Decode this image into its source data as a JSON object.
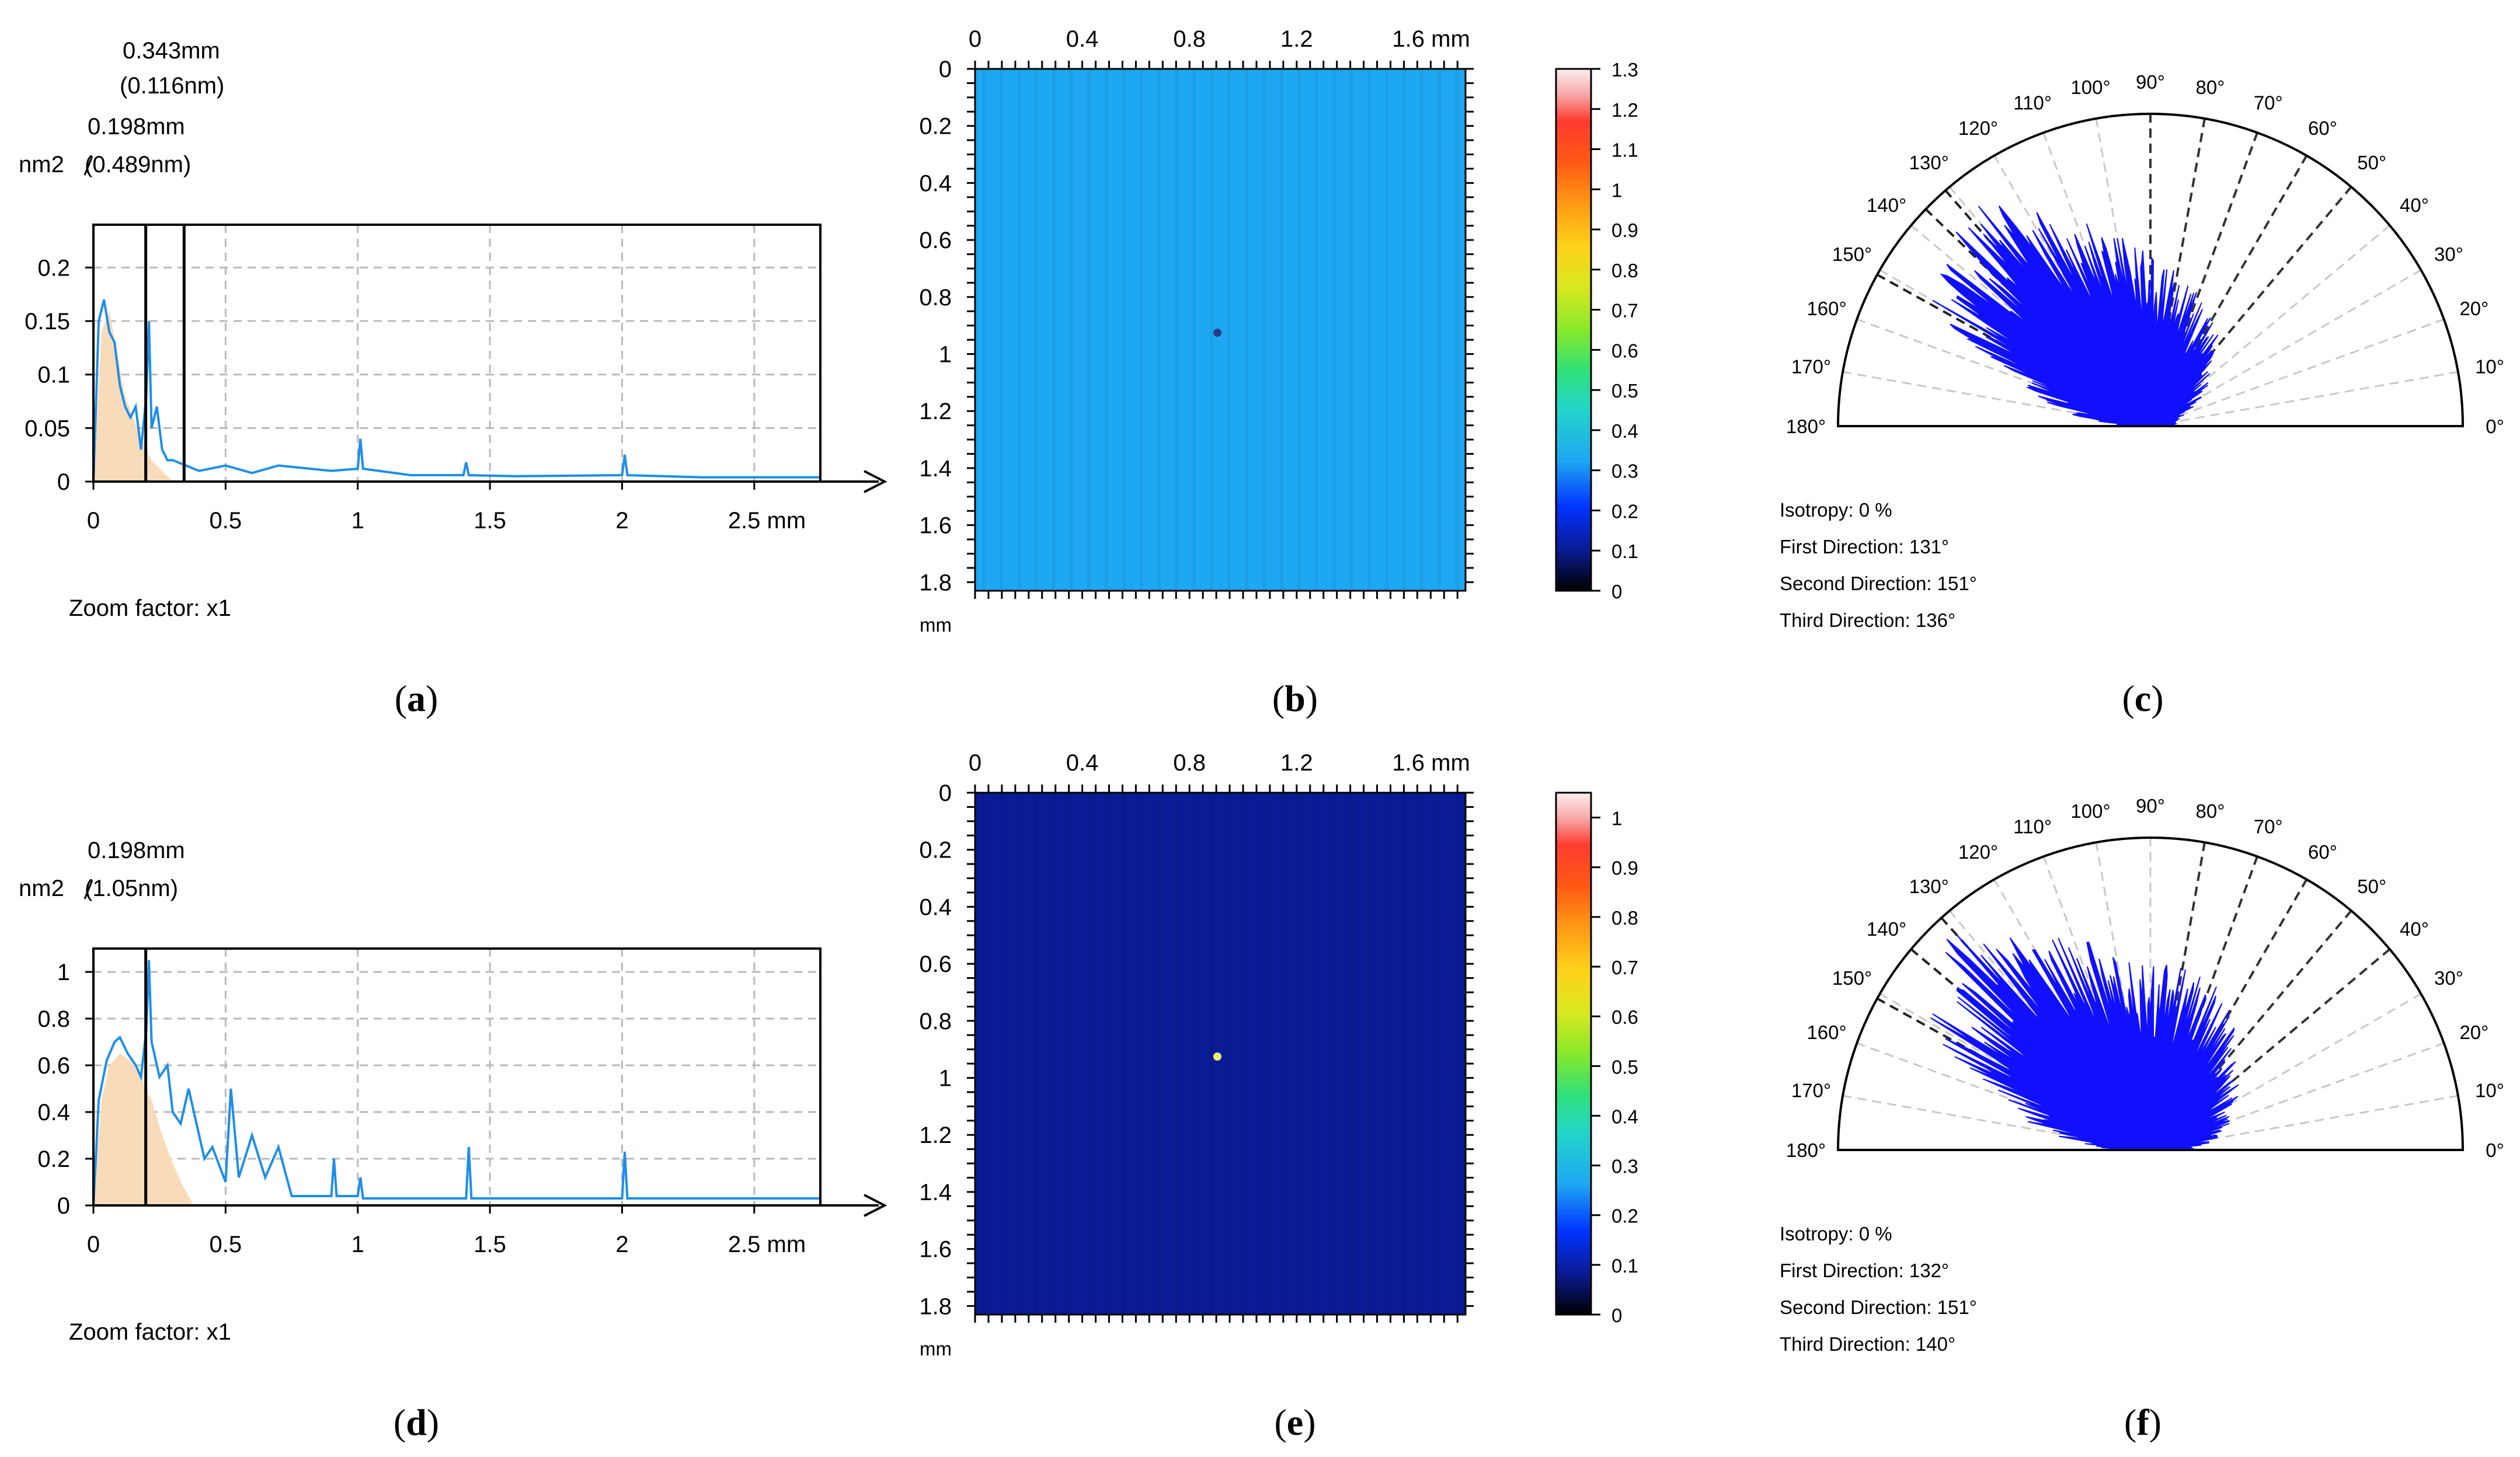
{
  "colors": {
    "spectrum_line": "#1e8ee8",
    "spectrum_fill": "#f8dcba",
    "grid": "#b9b9b9",
    "map_b": "#1ea8f2",
    "map_e": "#0a1b96",
    "rose_fill": "#1010ff"
  },
  "panels": {
    "a": {
      "caption_letter": "a"
    },
    "b": {
      "caption_letter": "b"
    },
    "c": {
      "caption_letter": "c"
    },
    "d": {
      "caption_letter": "d"
    },
    "e": {
      "caption_letter": "e"
    },
    "f": {
      "caption_letter": "f"
    }
  },
  "chart_data": [
    {
      "panel": "a",
      "type": "line",
      "title": "",
      "ylabel": "nm2",
      "xlabel": "mm",
      "xlim": [
        0,
        2.75
      ],
      "ylim": [
        0,
        0.24
      ],
      "xticks": [
        "0",
        "0.5",
        "1",
        "1.5",
        "2",
        "2.5 mm"
      ],
      "yticks": [
        "0",
        "0.05",
        "0.1",
        "0.15",
        "0.2"
      ],
      "x": [
        0,
        0.02,
        0.04,
        0.06,
        0.08,
        0.1,
        0.12,
        0.14,
        0.16,
        0.18,
        0.2,
        0.21,
        0.22,
        0.24,
        0.26,
        0.28,
        0.3,
        0.35,
        0.4,
        0.5,
        0.6,
        0.7,
        0.9,
        1.0,
        1.01,
        1.02,
        1.2,
        1.4,
        1.41,
        1.42,
        1.6,
        2.0,
        2.01,
        2.02,
        2.3,
        2.75
      ],
      "y": [
        0,
        0.15,
        0.17,
        0.14,
        0.13,
        0.09,
        0.07,
        0.06,
        0.07,
        0.03,
        0.08,
        0.15,
        0.05,
        0.07,
        0.03,
        0.02,
        0.02,
        0.015,
        0.01,
        0.015,
        0.008,
        0.015,
        0.01,
        0.012,
        0.04,
        0.012,
        0.006,
        0.006,
        0.018,
        0.006,
        0.005,
        0.006,
        0.025,
        0.006,
        0.004,
        0.004
      ],
      "area_x": [
        0,
        0.03,
        0.06,
        0.09,
        0.12,
        0.15,
        0.18,
        0.22,
        0.26,
        0.3
      ],
      "area_y": [
        0,
        0.14,
        0.16,
        0.12,
        0.08,
        0.06,
        0.04,
        0.02,
        0.01,
        0
      ],
      "markers": [
        {
          "x": 0.198,
          "label": "0.198mm",
          "sublabel": "(0.489nm)"
        },
        {
          "x": 0.343,
          "label": "0.343mm",
          "sublabel": "(0.116nm)"
        }
      ],
      "note": "Zoom factor: x1"
    },
    {
      "panel": "b",
      "type": "heatmap",
      "x_axis_ticks": [
        "0",
        "0.4",
        "0.8",
        "1.2",
        "1.6 mm"
      ],
      "y_axis_ticks": [
        "0",
        "0.2",
        "0.4",
        "0.6",
        "0.8",
        "1",
        "1.2",
        "1.4",
        "1.6",
        "1.8"
      ],
      "axis_unit": "mm",
      "uniform_value": 0.32,
      "colorbar_range": [
        0,
        1.3
      ],
      "colorbar_ticks": [
        "0",
        "0.1",
        "0.2",
        "0.3",
        "0.4",
        "0.5",
        "0.6",
        "0.7",
        "0.8",
        "0.9",
        "1",
        "1.1",
        "1.2",
        "1.3"
      ]
    },
    {
      "panel": "c",
      "type": "polar",
      "angle_range": [
        0,
        180
      ],
      "angle_labels": [
        "0°",
        "10°",
        "20°",
        "30°",
        "40°",
        "50°",
        "60°",
        "70°",
        "80°",
        "90°",
        "100°",
        "110°",
        "120°",
        "130°",
        "140°",
        "150°",
        "160°",
        "170°",
        "180°"
      ],
      "r_max": 1.0,
      "radial_profile": [
        {
          "angle": 0,
          "r": 0.1
        },
        {
          "angle": 10,
          "r": 0.08
        },
        {
          "angle": 20,
          "r": 0.12
        },
        {
          "angle": 30,
          "r": 0.2
        },
        {
          "angle": 40,
          "r": 0.25
        },
        {
          "angle": 50,
          "r": 0.35
        },
        {
          "angle": 60,
          "r": 0.4
        },
        {
          "angle": 70,
          "r": 0.45
        },
        {
          "angle": 80,
          "r": 0.5
        },
        {
          "angle": 90,
          "r": 0.55
        },
        {
          "angle": 100,
          "r": 0.62
        },
        {
          "angle": 110,
          "r": 0.72
        },
        {
          "angle": 120,
          "r": 0.82
        },
        {
          "angle": 131,
          "r": 0.98
        },
        {
          "angle": 140,
          "r": 0.85
        },
        {
          "angle": 151,
          "r": 0.8
        },
        {
          "angle": 160,
          "r": 0.45
        },
        {
          "angle": 170,
          "r": 0.3
        },
        {
          "angle": 180,
          "r": 0.05
        }
      ],
      "stats": {
        "isotropy": "Isotropy: 0 %",
        "first": "First Direction: 131°",
        "second": "Second Direction: 151°",
        "third": "Third Direction: 136°"
      },
      "dashed_directions": [
        131,
        151,
        136
      ]
    },
    {
      "panel": "d",
      "type": "line",
      "ylabel": "nm2",
      "xlabel": "mm",
      "xlim": [
        0,
        2.75
      ],
      "ylim": [
        0,
        1.1
      ],
      "xticks": [
        "0",
        "0.5",
        "1",
        "1.5",
        "2",
        "2.5 mm"
      ],
      "yticks": [
        "0",
        "0.2",
        "0.4",
        "0.6",
        "0.8",
        "1"
      ],
      "x": [
        0,
        0.02,
        0.05,
        0.08,
        0.1,
        0.13,
        0.16,
        0.18,
        0.2,
        0.21,
        0.22,
        0.25,
        0.28,
        0.3,
        0.33,
        0.36,
        0.4,
        0.42,
        0.45,
        0.5,
        0.52,
        0.55,
        0.6,
        0.65,
        0.7,
        0.75,
        0.9,
        0.91,
        0.92,
        1.0,
        1.01,
        1.02,
        1.3,
        1.41,
        1.42,
        1.43,
        2.0,
        2.01,
        2.02,
        2.4,
        2.75
      ],
      "y": [
        0,
        0.45,
        0.62,
        0.7,
        0.72,
        0.65,
        0.6,
        0.55,
        0.75,
        1.05,
        0.7,
        0.55,
        0.6,
        0.4,
        0.35,
        0.5,
        0.3,
        0.2,
        0.25,
        0.1,
        0.5,
        0.12,
        0.3,
        0.12,
        0.25,
        0.04,
        0.04,
        0.2,
        0.04,
        0.04,
        0.12,
        0.03,
        0.03,
        0.03,
        0.25,
        0.03,
        0.03,
        0.23,
        0.03,
        0.03,
        0.03
      ],
      "area_x": [
        0,
        0.03,
        0.06,
        0.1,
        0.14,
        0.18,
        0.22,
        0.26,
        0.3,
        0.34,
        0.38
      ],
      "area_y": [
        0,
        0.45,
        0.6,
        0.65,
        0.62,
        0.55,
        0.45,
        0.3,
        0.18,
        0.08,
        0
      ],
      "markers": [
        {
          "x": 0.198,
          "label": "0.198mm",
          "sublabel": "(1.05nm)"
        }
      ],
      "note": "Zoom factor: x1"
    },
    {
      "panel": "e",
      "type": "heatmap",
      "x_axis_ticks": [
        "0",
        "0.4",
        "0.8",
        "1.2",
        "1.6 mm"
      ],
      "y_axis_ticks": [
        "0",
        "0.2",
        "0.4",
        "0.6",
        "0.8",
        "1",
        "1.2",
        "1.4",
        "1.6",
        "1.8"
      ],
      "axis_unit": "mm",
      "uniform_value": 0.08,
      "colorbar_range": [
        0,
        1.05
      ],
      "colorbar_ticks": [
        "0",
        "0.1",
        "0.2",
        "0.3",
        "0.4",
        "0.5",
        "0.6",
        "0.7",
        "0.8",
        "0.9",
        "1"
      ]
    },
    {
      "panel": "f",
      "type": "polar",
      "angle_range": [
        0,
        180
      ],
      "angle_labels": [
        "0°",
        "10°",
        "20°",
        "30°",
        "40°",
        "50°",
        "60°",
        "70°",
        "80°",
        "90°",
        "100°",
        "110°",
        "120°",
        "130°",
        "140°",
        "150°",
        "160°",
        "170°",
        "180°"
      ],
      "r_max": 1.0,
      "radial_profile": [
        {
          "angle": 0,
          "r": 0.12
        },
        {
          "angle": 10,
          "r": 0.22
        },
        {
          "angle": 20,
          "r": 0.28
        },
        {
          "angle": 30,
          "r": 0.33
        },
        {
          "angle": 40,
          "r": 0.4
        },
        {
          "angle": 50,
          "r": 0.45
        },
        {
          "angle": 60,
          "r": 0.52
        },
        {
          "angle": 70,
          "r": 0.58
        },
        {
          "angle": 80,
          "r": 0.6
        },
        {
          "angle": 90,
          "r": 0.62
        },
        {
          "angle": 100,
          "r": 0.66
        },
        {
          "angle": 110,
          "r": 0.72
        },
        {
          "angle": 120,
          "r": 0.8
        },
        {
          "angle": 132,
          "r": 0.98
        },
        {
          "angle": 140,
          "r": 0.85
        },
        {
          "angle": 151,
          "r": 0.82
        },
        {
          "angle": 160,
          "r": 0.55
        },
        {
          "angle": 170,
          "r": 0.35
        },
        {
          "angle": 180,
          "r": 0.08
        }
      ],
      "stats": {
        "isotropy": "Isotropy: 0 %",
        "first": "First Direction: 132°",
        "second": "Second Direction: 151°",
        "third": "Third Direction: 140°"
      },
      "dashed_directions": [
        132,
        151,
        140
      ]
    }
  ]
}
